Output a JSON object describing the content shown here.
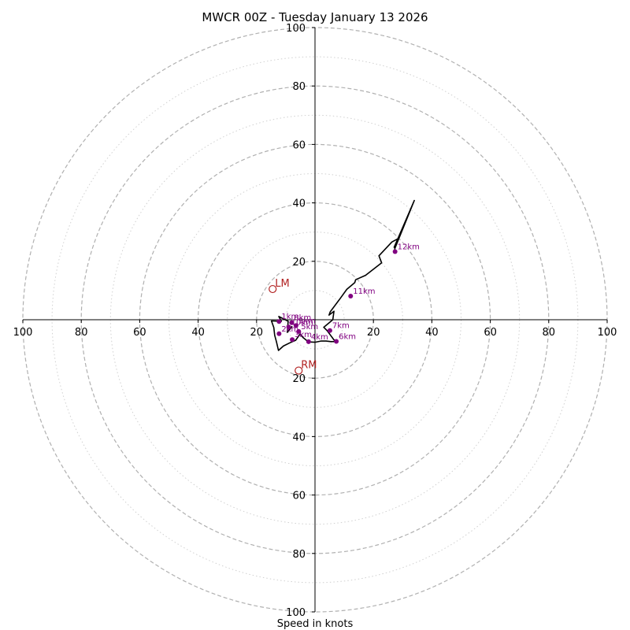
{
  "chart_data": {
    "type": "hodograph",
    "title": "MWCR 00Z - Tuesday January 13 2026",
    "xlabel": "Speed in knots",
    "ring_step": 20,
    "minor_ring_step": 10,
    "max_speed": 100,
    "xticks": [
      {
        "v": -100,
        "label": "100"
      },
      {
        "v": -80,
        "label": "80"
      },
      {
        "v": -60,
        "label": "60"
      },
      {
        "v": -40,
        "label": "40"
      },
      {
        "v": -20,
        "label": "20"
      },
      {
        "v": 20,
        "label": "20"
      },
      {
        "v": 40,
        "label": "40"
      },
      {
        "v": 60,
        "label": "60"
      },
      {
        "v": 80,
        "label": "80"
      },
      {
        "v": 100,
        "label": "100"
      }
    ],
    "yticks": [
      {
        "v": 100,
        "label": "100"
      },
      {
        "v": 80,
        "label": "80"
      },
      {
        "v": 60,
        "label": "60"
      },
      {
        "v": 40,
        "label": "40"
      },
      {
        "v": 20,
        "label": "20"
      },
      {
        "v": -20,
        "label": "20"
      },
      {
        "v": -40,
        "label": "40"
      },
      {
        "v": -60,
        "label": "60"
      },
      {
        "v": -80,
        "label": "80"
      },
      {
        "v": -100,
        "label": "100"
      }
    ],
    "trace": {
      "color": "#000000",
      "points": [
        [
          -7.8,
          -2.2
        ],
        [
          -9.5,
          -4.3
        ],
        [
          -9.2,
          -0.5
        ],
        [
          -12.4,
          1.1
        ],
        [
          -11.5,
          -0.5
        ],
        [
          -14.9,
          -0.4
        ],
        [
          -14.1,
          -2.7
        ],
        [
          -13.8,
          -5.3
        ],
        [
          -13.2,
          -7.5
        ],
        [
          -12.5,
          -10.5
        ],
        [
          -10.8,
          -9.0
        ],
        [
          -8.6,
          -7.9
        ],
        [
          -6.6,
          -7.0
        ],
        [
          -5.1,
          -4.9
        ],
        [
          -4.1,
          -6.1
        ],
        [
          -2.2,
          -7.6
        ],
        [
          0.0,
          -7.7
        ],
        [
          2.0,
          -7.3
        ],
        [
          3.8,
          -7.3
        ],
        [
          5.5,
          -7.5
        ],
        [
          7.8,
          -7.4
        ],
        [
          6.5,
          -6.9
        ],
        [
          5.0,
          -4.9
        ],
        [
          4.2,
          -3.8
        ],
        [
          3.0,
          -2.6
        ],
        [
          6.1,
          0.0
        ],
        [
          6.5,
          2.9
        ],
        [
          4.8,
          1.6
        ],
        [
          5.2,
          2.7
        ],
        [
          8.8,
          7.5
        ],
        [
          10.9,
          10.4
        ],
        [
          13.6,
          12.7
        ],
        [
          13.9,
          13.7
        ],
        [
          17.3,
          15.2
        ],
        [
          22.8,
          19.5
        ],
        [
          21.9,
          21.9
        ],
        [
          26.3,
          26.6
        ],
        [
          28.5,
          27.8
        ],
        [
          27.1,
          24.8
        ],
        [
          34.0,
          40.8
        ],
        [
          27.3,
          24.3
        ],
        [
          27.4,
          23.3
        ]
      ]
    },
    "height_markers": [
      {
        "label": "1km",
        "u": -12.3,
        "v": -0.6
      },
      {
        "label": "2km",
        "u": -12.3,
        "v": -4.8
      },
      {
        "label": "3km",
        "u": -7.8,
        "v": -6.8
      },
      {
        "label": "4km",
        "u": -2.2,
        "v": -7.5
      },
      {
        "label": "5km",
        "u": -5.6,
        "v": -4.0
      },
      {
        "label": "6km",
        "u": 7.3,
        "v": -7.4
      },
      {
        "label": "7km",
        "u": 5.1,
        "v": -3.7
      },
      {
        "label": "8km",
        "u": -8.0,
        "v": -1.0
      },
      {
        "label": "9km",
        "u": -6.5,
        "v": -2.0
      },
      {
        "label": "10km",
        "u": -9.0,
        "v": -2.5
      },
      {
        "label": "11km",
        "u": 12.2,
        "v": 8.1
      },
      {
        "label": "12km",
        "u": 27.4,
        "v": 23.3
      }
    ],
    "storm_motion": [
      {
        "label": "LM",
        "u": -14.5,
        "v": 10.5
      },
      {
        "label": "RM",
        "u": -5.6,
        "v": -17.4
      }
    ],
    "colors": {
      "ring_major": "#b0b0b0",
      "ring_minor": "#d0d0d0",
      "height_marker": "#800080",
      "storm_motion": "#b22222"
    }
  }
}
